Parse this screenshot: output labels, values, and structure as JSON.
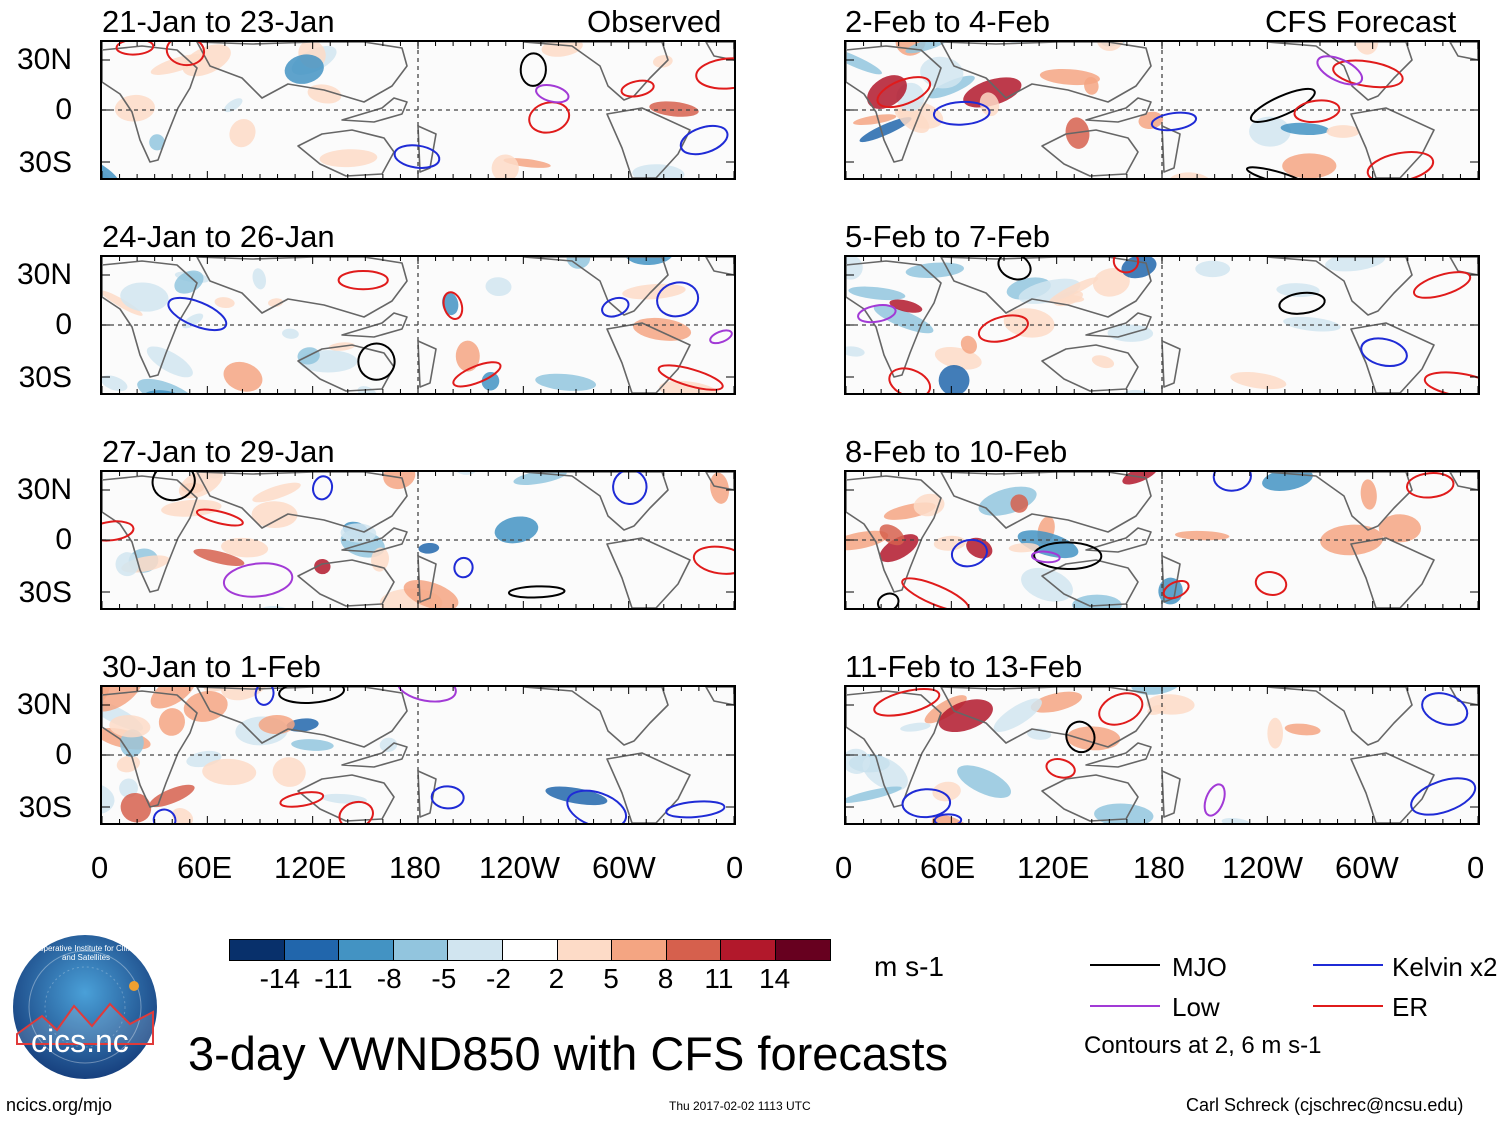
{
  "main_title": "3-day VWND850 with CFS forecasts",
  "observed_label": "Observed",
  "forecast_label": "CFS Forecast",
  "left_panels": [
    {
      "title": "21-Jan to 23-Jan"
    },
    {
      "title": "24-Jan to 26-Jan"
    },
    {
      "title": "27-Jan to 29-Jan"
    },
    {
      "title": "30-Jan to 1-Feb"
    }
  ],
  "right_panels": [
    {
      "title": "2-Feb to 4-Feb"
    },
    {
      "title": "5-Feb to 7-Feb"
    },
    {
      "title": "8-Feb to 10-Feb"
    },
    {
      "title": "11-Feb to 13-Feb"
    }
  ],
  "lat_labels": [
    "30N",
    "0",
    "30S"
  ],
  "lon_labels": [
    "0",
    "60E",
    "120E",
    "180",
    "120W",
    "60W",
    "0"
  ],
  "colorbar": {
    "colors": [
      "#08306b",
      "#2166ac",
      "#4393c3",
      "#92c5de",
      "#d1e5f0",
      "#ffffff",
      "#fddbc7",
      "#f4a582",
      "#d6604d",
      "#b2182b",
      "#67001f"
    ],
    "labels": [
      "-14",
      "-11",
      "-8",
      "-5",
      "-2",
      "2",
      "5",
      "8",
      "11",
      "14"
    ],
    "units": "m s-1"
  },
  "legend": {
    "items": [
      {
        "label": "MJO",
        "color": "#000000"
      },
      {
        "label": "Kelvin x2",
        "color": "#1f2bd6"
      },
      {
        "label": "Low",
        "color": "#a23ad6"
      },
      {
        "label": "ER",
        "color": "#e01b1b"
      }
    ],
    "contours_note": "Contours at 2, 6 m s-1"
  },
  "logo_text": "cics.nc",
  "logo_ring_text": "Cooperative Institute for Climate and Satellites",
  "footer": {
    "website": "ncics.org/mjo",
    "timestamp": "Thu 2017-02-02 1113 UTC",
    "author": "Carl Schreck (cjschrec@ncsu.edu)"
  }
}
